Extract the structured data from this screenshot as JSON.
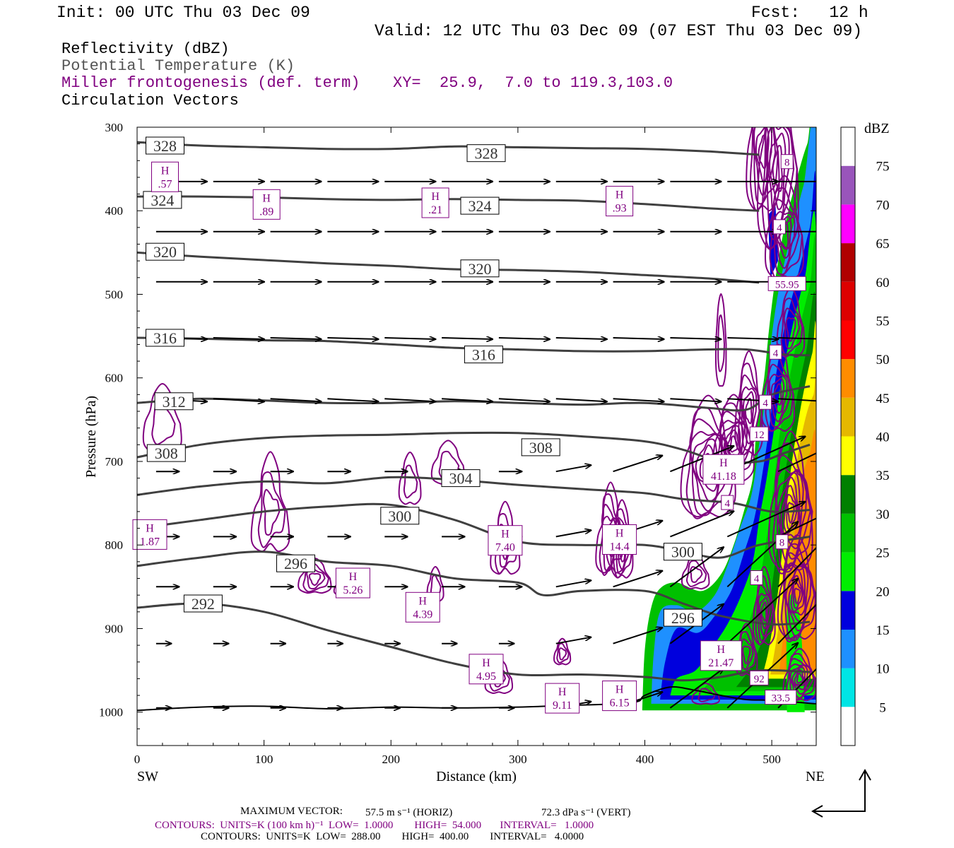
{
  "header": {
    "init": "Init: 00 UTC Thu 03 Dec 09",
    "fcst": "Fcst:   12 h",
    "valid": "Valid: 12 UTC Thu 03 Dec 09 (07 EST Thu 03 Dec 09)"
  },
  "legend": {
    "reflectivity": "Reflectivity (dBZ)",
    "theta": "Potential Temperature (K)",
    "miller": "Miller frontogenesis (def. term)",
    "xy": "XY=  25.9,  7.0 to 119.3,103.0",
    "vectors": "Circulation Vectors"
  },
  "colors": {
    "theta": "#404040",
    "frontogenesis": "#800080",
    "vectors": "#000000"
  },
  "chart_data": {
    "type": "cross-section",
    "xlabel": "Distance (km)",
    "ylabel": "Pressure (hPa)",
    "xlim": [
      0,
      535
    ],
    "ylim": [
      1040,
      300
    ],
    "x_ticks": [
      0,
      100,
      200,
      300,
      400,
      500
    ],
    "y_ticks": [
      300,
      400,
      500,
      600,
      700,
      800,
      900,
      1000
    ],
    "left_end": "SW",
    "right_end": "NE",
    "colorbar": {
      "unit": "dBZ",
      "levels": [
        5,
        10,
        15,
        20,
        25,
        30,
        35,
        40,
        45,
        50,
        55,
        60,
        65,
        70,
        75
      ],
      "colors": [
        "#ffffff",
        "#00e5e5",
        "#1e90ff",
        "#0000dd",
        "#00ee00",
        "#00c000",
        "#008000",
        "#ffff00",
        "#e5b800",
        "#ff8c00",
        "#ff0000",
        "#dd0000",
        "#b00000",
        "#ff00ff",
        "#9955bb",
        "#ffffff"
      ]
    },
    "isentropes": [
      {
        "theta": 328,
        "points": [
          [
            0,
            318
          ],
          [
            50,
            322
          ],
          [
            100,
            324
          ],
          [
            150,
            326
          ],
          [
            200,
            326
          ],
          [
            250,
            323
          ],
          [
            300,
            324
          ],
          [
            350,
            325
          ],
          [
            400,
            326
          ],
          [
            450,
            329
          ],
          [
            490,
            333
          ]
        ]
      },
      {
        "theta": 324,
        "points": [
          [
            0,
            383
          ],
          [
            50,
            383
          ],
          [
            100,
            384
          ],
          [
            150,
            386
          ],
          [
            200,
            387
          ],
          [
            250,
            386
          ],
          [
            300,
            387
          ],
          [
            350,
            388
          ],
          [
            400,
            392
          ],
          [
            450,
            397
          ],
          [
            490,
            400
          ]
        ]
      },
      {
        "theta": 320,
        "points": [
          [
            0,
            450
          ],
          [
            50,
            455
          ],
          [
            100,
            459
          ],
          [
            150,
            463
          ],
          [
            200,
            466
          ],
          [
            250,
            470
          ],
          [
            300,
            471
          ],
          [
            350,
            473
          ],
          [
            400,
            477
          ],
          [
            450,
            481
          ],
          [
            490,
            486
          ]
        ]
      },
      {
        "theta": 316,
        "points": [
          [
            0,
            552
          ],
          [
            50,
            553
          ],
          [
            100,
            555
          ],
          [
            150,
            556
          ],
          [
            200,
            560
          ],
          [
            250,
            564
          ],
          [
            300,
            566
          ],
          [
            350,
            568
          ],
          [
            400,
            568
          ],
          [
            450,
            566
          ],
          [
            480,
            566
          ],
          [
            510,
            572
          ],
          [
            530,
            573
          ]
        ]
      },
      {
        "theta": 312,
        "points": [
          [
            0,
            630
          ],
          [
            50,
            625
          ],
          [
            100,
            627
          ],
          [
            150,
            630
          ],
          [
            200,
            630
          ],
          [
            250,
            628
          ],
          [
            300,
            630
          ],
          [
            350,
            632
          ],
          [
            400,
            630
          ],
          [
            450,
            636
          ],
          [
            480,
            638
          ],
          [
            500,
            620
          ],
          [
            530,
            610
          ]
        ]
      },
      {
        "theta": 308,
        "points": [
          [
            0,
            695
          ],
          [
            50,
            680
          ],
          [
            100,
            672
          ],
          [
            150,
            669
          ],
          [
            200,
            668
          ],
          [
            250,
            666
          ],
          [
            300,
            666
          ],
          [
            350,
            670
          ],
          [
            400,
            676
          ],
          [
            430,
            686
          ],
          [
            460,
            700
          ],
          [
            490,
            700
          ],
          [
            510,
            690
          ],
          [
            530,
            680
          ]
        ]
      },
      {
        "theta": 304,
        "points": [
          [
            0,
            740
          ],
          [
            50,
            730
          ],
          [
            100,
            724
          ],
          [
            150,
            726
          ],
          [
            200,
            719
          ],
          [
            250,
            722
          ],
          [
            300,
            728
          ],
          [
            350,
            733
          ],
          [
            400,
            738
          ],
          [
            430,
            745
          ],
          [
            470,
            750
          ],
          [
            500,
            760
          ],
          [
            530,
            758
          ]
        ]
      },
      {
        "theta": 300,
        "points": [
          [
            0,
            780
          ],
          [
            50,
            770
          ],
          [
            100,
            760
          ],
          [
            150,
            754
          ],
          [
            200,
            752
          ],
          [
            250,
            770
          ],
          [
            300,
            796
          ],
          [
            350,
            800
          ],
          [
            400,
            800
          ],
          [
            430,
            808
          ],
          [
            460,
            815
          ],
          [
            490,
            800
          ],
          [
            530,
            790
          ]
        ]
      },
      {
        "theta": 296,
        "points": [
          [
            0,
            825
          ],
          [
            50,
            815
          ],
          [
            100,
            808
          ],
          [
            150,
            820
          ],
          [
            200,
            825
          ],
          [
            250,
            840
          ],
          [
            300,
            845
          ],
          [
            320,
            860
          ],
          [
            350,
            855
          ],
          [
            400,
            855
          ],
          [
            430,
            870
          ],
          [
            460,
            885
          ],
          [
            500,
            895
          ],
          [
            530,
            892
          ]
        ]
      },
      {
        "theta": 292,
        "points": [
          [
            0,
            875
          ],
          [
            50,
            870
          ],
          [
            100,
            880
          ],
          [
            150,
            902
          ],
          [
            200,
            922
          ],
          [
            250,
            942
          ],
          [
            300,
            955
          ],
          [
            350,
            955
          ],
          [
            400,
            958
          ],
          [
            430,
            962
          ],
          [
            460,
            958
          ],
          [
            490,
            950
          ],
          [
            530,
            952
          ]
        ]
      }
    ],
    "surface": [
      [
        0,
        998
      ],
      [
        50,
        994
      ],
      [
        100,
        993
      ],
      [
        150,
        996
      ],
      [
        200,
        994
      ],
      [
        250,
        995
      ],
      [
        300,
        994
      ],
      [
        340,
        992
      ],
      [
        380,
        990
      ],
      [
        395,
        987
      ],
      [
        400,
        980
      ],
      [
        420,
        970
      ],
      [
        440,
        974
      ],
      [
        460,
        980
      ],
      [
        480,
        985
      ],
      [
        500,
        986
      ],
      [
        535,
        990
      ]
    ],
    "frontogenesis_maxima": [
      {
        "label": "H",
        "value": "1.87",
        "x": 10,
        "p": 790
      },
      {
        "label": "H",
        "value": "5.26",
        "x": 170,
        "p": 848
      },
      {
        "label": "H",
        "value": "4.39",
        "x": 225,
        "p": 877
      },
      {
        "label": "H",
        "value": "7.40",
        "x": 290,
        "p": 797
      },
      {
        "label": "H",
        "value": "14.4",
        "x": 380,
        "p": 796
      },
      {
        "label": "H",
        "value": "4.95",
        "x": 275,
        "p": 951
      },
      {
        "label": "H",
        "value": "9.11",
        "x": 335,
        "p": 986
      },
      {
        "label": "H",
        "value": "6.15",
        "x": 380,
        "p": 983
      },
      {
        "label": "H",
        "value": "21.47",
        "x": 460,
        "p": 935
      },
      {
        "label": "H",
        "value": "41.18",
        "x": 462,
        "p": 712
      },
      {
        "label": "H",
        "value": ".57",
        "x": 22,
        "p": 362
      },
      {
        "label": "H",
        "value": ".89",
        "x": 102,
        "p": 395
      },
      {
        "label": "H",
        "value": ".21",
        "x": 235,
        "p": 393
      },
      {
        "label": "H",
        "value": ".93",
        "x": 380,
        "p": 391
      }
    ],
    "contour_labels_small": [
      "8",
      "4",
      "4",
      "4",
      "12",
      "4",
      "8",
      "4",
      "92",
      "55.95",
      "33.5"
    ],
    "maximum_vector_label": "MAXIMUM VECTOR:",
    "maximum_vector_horiz": "57.5 m s⁻¹ (HORIZ)",
    "maximum_vector_vert": "72.3 dPa s⁻¹ (VERT)",
    "contours_fronto": "CONTOURS:  UNITS=K (100 km h)⁻¹  LOW=  1.0000        HIGH=  54.000       INTERVAL=   1.0000",
    "contours_theta": "CONTOURS:  UNITS=K  LOW=  288.00        HIGH=  400.00        INTERVAL=   4.0000"
  }
}
